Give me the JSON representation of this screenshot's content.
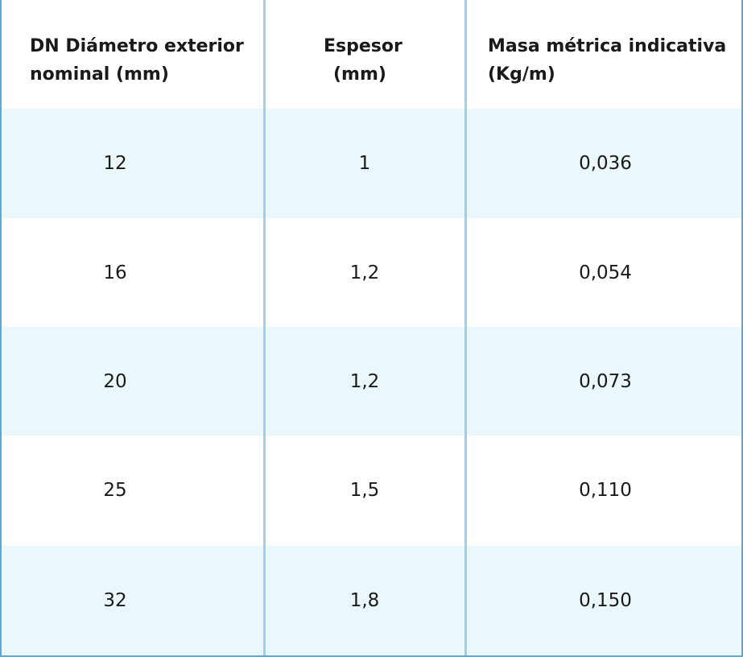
{
  "table": {
    "header": [
      [
        "DN Diámetro exterior",
        "nominal (mm)"
      ],
      [
        "Espesor",
        "(mm)"
      ],
      [
        "Masa métrica indicativa",
        "(Kg/m)"
      ]
    ],
    "rows": [
      [
        "12",
        "1",
        "0,036"
      ],
      [
        "16",
        "1,2",
        "0,054"
      ],
      [
        "20",
        "1,2",
        "0,073"
      ],
      [
        "25",
        "1,5",
        "0,110"
      ],
      [
        "32",
        "1,8",
        "0,150"
      ]
    ]
  }
}
